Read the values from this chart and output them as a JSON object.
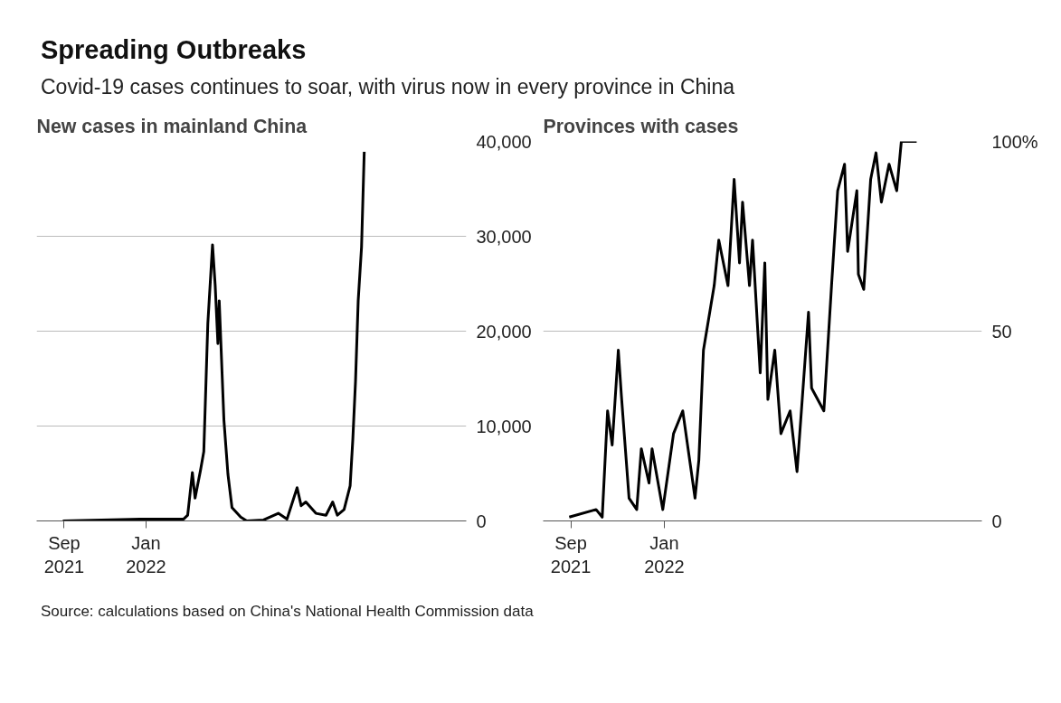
{
  "chart_data": [
    {
      "type": "line",
      "title": "New cases in mainland China",
      "annotations": [
        "Spreading Outbreaks",
        "Covid-19 cases continues to soar, with virus now in every province in China"
      ],
      "x": [
        "2021-08-30",
        "2021-12-23",
        "2022-02-26",
        "2022-03-04",
        "2022-03-11",
        "2022-03-15",
        "2022-03-23",
        "2022-03-28",
        "2022-04-03",
        "2022-04-10",
        "2022-04-14",
        "2022-04-18",
        "2022-04-20",
        "2022-04-27",
        "2022-05-03",
        "2022-05-09",
        "2022-05-22",
        "2022-05-31",
        "2022-06-25",
        "2022-07-17",
        "2022-07-30",
        "2022-08-14",
        "2022-08-20",
        "2022-08-27",
        "2022-09-11",
        "2022-09-26",
        "2022-10-06",
        "2022-10-13",
        "2022-10-23",
        "2022-11-01",
        "2022-11-05",
        "2022-11-09",
        "2022-11-13",
        "2022-11-18",
        "2022-11-22"
      ],
      "series": [
        {
          "color": "#000000",
          "values": [
            0,
            200,
            200,
            600,
            5100,
            2400,
            5300,
            7300,
            20800,
            29100,
            24800,
            18700,
            23200,
            10600,
            4900,
            1400,
            400,
            0,
            100,
            800,
            200,
            3500,
            1600,
            2000,
            800,
            600,
            2000,
            600,
            1200,
            3700,
            8600,
            14700,
            23200,
            28900,
            38900
          ]
        }
      ],
      "xlim": [
        "2021-07-22",
        "2023-04-23"
      ],
      "ylim": [
        0,
        40000
      ],
      "xticks": [
        {
          "value": "2021-09-01",
          "label": "Sep\n2021"
        },
        {
          "value": "2022-01-01",
          "label": "Jan\n2022"
        }
      ],
      "yticks": [
        0,
        {
          "value": 10000,
          "label": "10,000"
        },
        {
          "value": 20000,
          "label": "20,000"
        },
        {
          "value": 30000,
          "label": "30,000"
        },
        {
          "value": 40000,
          "label": "40,000"
        }
      ],
      "grid": "y",
      "marker": "none",
      "line_style": "solid"
    },
    {
      "type": "line",
      "title": "Provinces with cases",
      "x": [
        "2021-08-30",
        "2021-10-04",
        "2021-10-12",
        "2021-10-19",
        "2021-10-25",
        "2021-11-02",
        "2021-11-06",
        "2021-11-16",
        "2021-11-26",
        "2021-12-02",
        "2021-12-12",
        "2021-12-16",
        "2021-12-30",
        "2022-01-13",
        "2022-01-25",
        "2022-02-10",
        "2022-02-15",
        "2022-02-21",
        "2022-03-07",
        "2022-03-13",
        "2022-03-25",
        "2022-04-02",
        "2022-04-09",
        "2022-04-13",
        "2022-04-22",
        "2022-04-26",
        "2022-05-06",
        "2022-05-12",
        "2022-05-16",
        "2022-05-25",
        "2022-06-02",
        "2022-06-14",
        "2022-06-23",
        "2022-07-08",
        "2022-07-12",
        "2022-07-28",
        "2022-08-07",
        "2022-08-15",
        "2022-08-24",
        "2022-08-28",
        "2022-09-09",
        "2022-09-11",
        "2022-09-18",
        "2022-09-27",
        "2022-10-04",
        "2022-10-11",
        "2022-10-21",
        "2022-10-31",
        "2022-11-06",
        "2022-11-26"
      ],
      "series": [
        {
          "color": "#000000",
          "values": [
            1,
            3,
            1,
            29,
            20,
            45,
            33,
            6,
            3,
            19,
            10,
            19,
            3,
            23,
            29,
            6,
            16,
            45,
            62,
            74,
            62,
            90,
            68,
            84,
            62,
            74,
            39,
            68,
            32,
            45,
            23,
            29,
            13,
            55,
            35,
            29,
            62,
            87,
            94,
            71,
            87,
            65,
            61,
            90,
            97,
            84,
            94,
            87,
            100,
            100
          ]
        }
      ],
      "xlim": [
        "2021-07-27",
        "2023-02-19"
      ],
      "ylim": [
        0,
        100
      ],
      "xticks": [
        {
          "value": "2021-09-01",
          "label": "Sep\n2021"
        },
        {
          "value": "2022-01-01",
          "label": "Jan\n2022"
        }
      ],
      "yticks": [
        0,
        50,
        {
          "value": 100,
          "label": "100%"
        }
      ],
      "grid": "y",
      "marker": "none",
      "line_style": "solid",
      "annotations": [
        "Source: calculations based on China's National Health Commission data"
      ]
    }
  ]
}
